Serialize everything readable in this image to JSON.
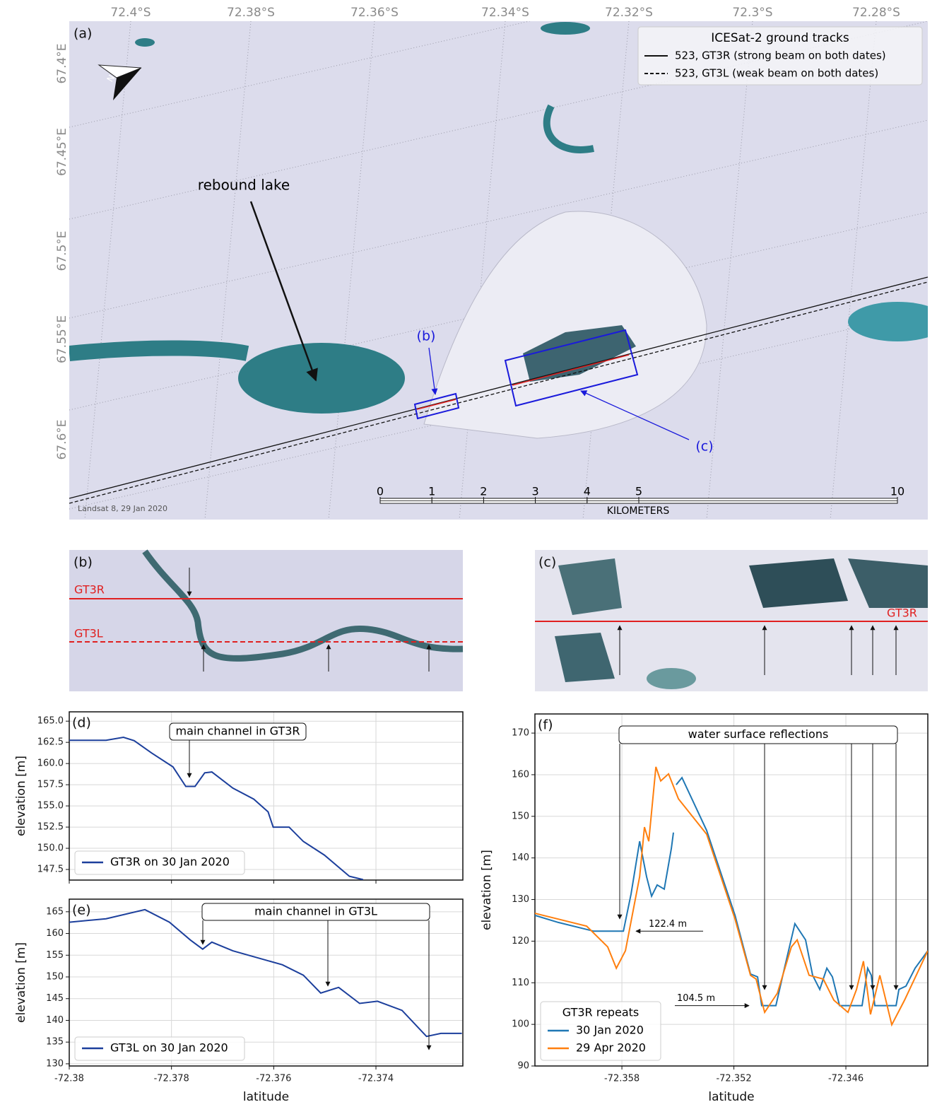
{
  "map": {
    "panel_label": "(a)",
    "lat_labels": [
      "72.4°S",
      "72.38°S",
      "72.36°S",
      "72.34°S",
      "72.32°S",
      "72.3°S",
      "72.28°S"
    ],
    "lon_labels": [
      "67.4°E",
      "67.45°E",
      "67.5°E",
      "67.55°E",
      "67.6°E"
    ],
    "legend": {
      "title": "ICESat-2 ground tracks",
      "entries": [
        "523, GT3R (strong beam on both dates)",
        "523, GT3L (weak beam on both dates)"
      ]
    },
    "annotation": "rebound lake",
    "inset_labels": [
      "(b)",
      "(c)"
    ],
    "scale_km": [
      0,
      1,
      2,
      3,
      4,
      5,
      10
    ],
    "scale_unit": "KILOMETERS",
    "credit": "Landsat 8, 29 Jan 2020"
  },
  "inset_b": {
    "panel_label": "(b)",
    "track_labels": [
      "GT3R",
      "GT3L"
    ]
  },
  "inset_c": {
    "panel_label": "(c)",
    "track_label": "GT3R"
  },
  "chart_data": [
    {
      "type": "line",
      "panel_label": "(d)",
      "y_label": "elevation [m]",
      "annotation": "main channel in GT3R",
      "x": [
        -72.38,
        -72.37928,
        -72.37894,
        -72.37873,
        -72.37839,
        -72.37797,
        -72.37772,
        -72.37754,
        -72.37735,
        -72.37721,
        -72.3768,
        -72.37639,
        -72.37611,
        -72.37601,
        -72.3757,
        -72.37542,
        -72.37501,
        -72.37452,
        -72.37425
      ],
      "series": [
        {
          "name": "GT3R on 30 Jan 2020",
          "color": "#1c3f9c",
          "values": [
            162.75,
            162.75,
            163.1,
            162.7,
            161.25,
            159.6,
            157.3,
            157.3,
            158.9,
            159,
            157.1,
            155.8,
            154.3,
            152.5,
            152.5,
            150.8,
            149.2,
            146.7,
            146.3
          ]
        }
      ],
      "xlim": [
        -72.38,
        -72.3723
      ],
      "xticks": [
        -72.38,
        -72.378,
        -72.376,
        -72.374
      ],
      "xtick_labels": false,
      "ylim": [
        146.25,
        166.1
      ],
      "yticks": [
        {
          "value": 165,
          "label": "165.0"
        },
        162.5,
        {
          "value": 160,
          "label": "160.0"
        },
        157.5,
        {
          "value": 155,
          "label": "155.0"
        },
        152.5,
        {
          "value": 150,
          "label": "150.0"
        },
        147.5
      ],
      "grid": true
    },
    {
      "type": "line",
      "panel_label": "(e)",
      "y_label": "elevation [m]",
      "x_label": "latitude",
      "annotation": "main channel in GT3L",
      "x": [
        -72.38,
        -72.37928,
        -72.37852,
        -72.37804,
        -72.37763,
        -72.37739,
        -72.37721,
        -72.3768,
        -72.37583,
        -72.37542,
        -72.37508,
        -72.37473,
        -72.37432,
        -72.37397,
        -72.37349,
        -72.37301,
        -72.37273,
        -72.37232
      ],
      "series": [
        {
          "name": "GT3L on 30 Jan 2020",
          "color": "#1c3f9c",
          "values": [
            162.6,
            163.4,
            165.5,
            162.6,
            158.5,
            156.4,
            158,
            156,
            152.8,
            150.4,
            146.3,
            147.6,
            143.9,
            144.4,
            142.3,
            136.3,
            137,
            137
          ]
        }
      ],
      "xlim": [
        -72.38,
        -72.3723
      ],
      "xticks": [
        -72.38,
        -72.378,
        -72.376,
        -72.374
      ],
      "ylim": [
        129.5,
        167.9
      ],
      "yticks": [
        130,
        135,
        140,
        145,
        150,
        155,
        160,
        165
      ],
      "grid": true
    },
    {
      "type": "line",
      "panel_label": "(f)",
      "y_label": "elevation [m]",
      "x_label": "latitude",
      "annotation": "water surface reflections",
      "legend_title": "GT3R repeats",
      "levels": [
        {
          "value": 122.4,
          "label": "122.4 m"
        },
        {
          "value": 104.5,
          "label": "104.5 m"
        }
      ],
      "series": [
        {
          "name": "30 Jan 2020",
          "color": "#1f77b4",
          "x": [
            -72.36266,
            -72.36141,
            -72.35951,
            -72.35792,
            -72.35751,
            -72.35705,
            -72.35668,
            -72.35641,
            -72.35611,
            -72.35573,
            -72.35535,
            -72.35524,
            null,
            -72.35509,
            -72.35478,
            -72.35346,
            -72.35194,
            -72.35111,
            -72.35073,
            -72.35051,
            -72.34975,
            -72.34929,
            -72.34873,
            -72.34816,
            -72.34778,
            -72.3474,
            -72.34702,
            -72.34672,
            -72.34634,
            -72.34513,
            -72.34483,
            -72.34464,
            -72.34445,
            -72.34331,
            -72.34316,
            -72.34278,
            -72.34229,
            -72.34161
          ],
          "values": [
            126.2,
            124.5,
            122.4,
            122.4,
            131.3,
            144,
            135.5,
            130.8,
            133.5,
            132.5,
            142.3,
            146.1,
            null,
            157.6,
            159.3,
            146.6,
            126.2,
            112.1,
            111.4,
            104.5,
            104.5,
            113.5,
            124.2,
            120.3,
            111.8,
            108.4,
            113.5,
            111.4,
            104.5,
            104.5,
            113.5,
            111.8,
            104.5,
            104.5,
            108.4,
            109.2,
            113.5,
            117.7
          ]
        },
        {
          "name": "29 Apr 2020",
          "color": "#ff7f0e",
          "x": [
            -72.36266,
            -72.36141,
            -72.35989,
            -72.35876,
            -72.3583,
            -72.35781,
            -72.35705,
            -72.35679,
            -72.35656,
            -72.35618,
            -72.35592,
            -72.3555,
            -72.35497,
            -72.35346,
            -72.35194,
            -72.35111,
            -72.35081,
            -72.35035,
            -72.34967,
            -72.34892,
            -72.34861,
            -72.34797,
            -72.34721,
            -72.34664,
            -72.34589,
            -72.34543,
            -72.34506,
            -72.34468,
            -72.34418,
            -72.34354,
            -72.34286,
            -72.34161
          ],
          "values": [
            126.7,
            125.3,
            123.6,
            118.6,
            113.5,
            117.7,
            135.5,
            147.4,
            144,
            161.9,
            158.5,
            160.2,
            154.2,
            145.7,
            125.3,
            111.8,
            110.9,
            102.9,
            107.5,
            118.6,
            120.3,
            111.8,
            110.9,
            105.8,
            102.9,
            108.4,
            115.2,
            102.4,
            111.8,
            99.9,
            105.8,
            117.7
          ]
        }
      ],
      "xlim": [
        -72.36266,
        -72.34161
      ],
      "xticks": [
        -72.358,
        -72.352,
        -72.346
      ],
      "ylim": [
        90,
        174.6
      ],
      "yticks": [
        90,
        100,
        110,
        120,
        130,
        140,
        150,
        160,
        170
      ],
      "grid": true
    }
  ]
}
